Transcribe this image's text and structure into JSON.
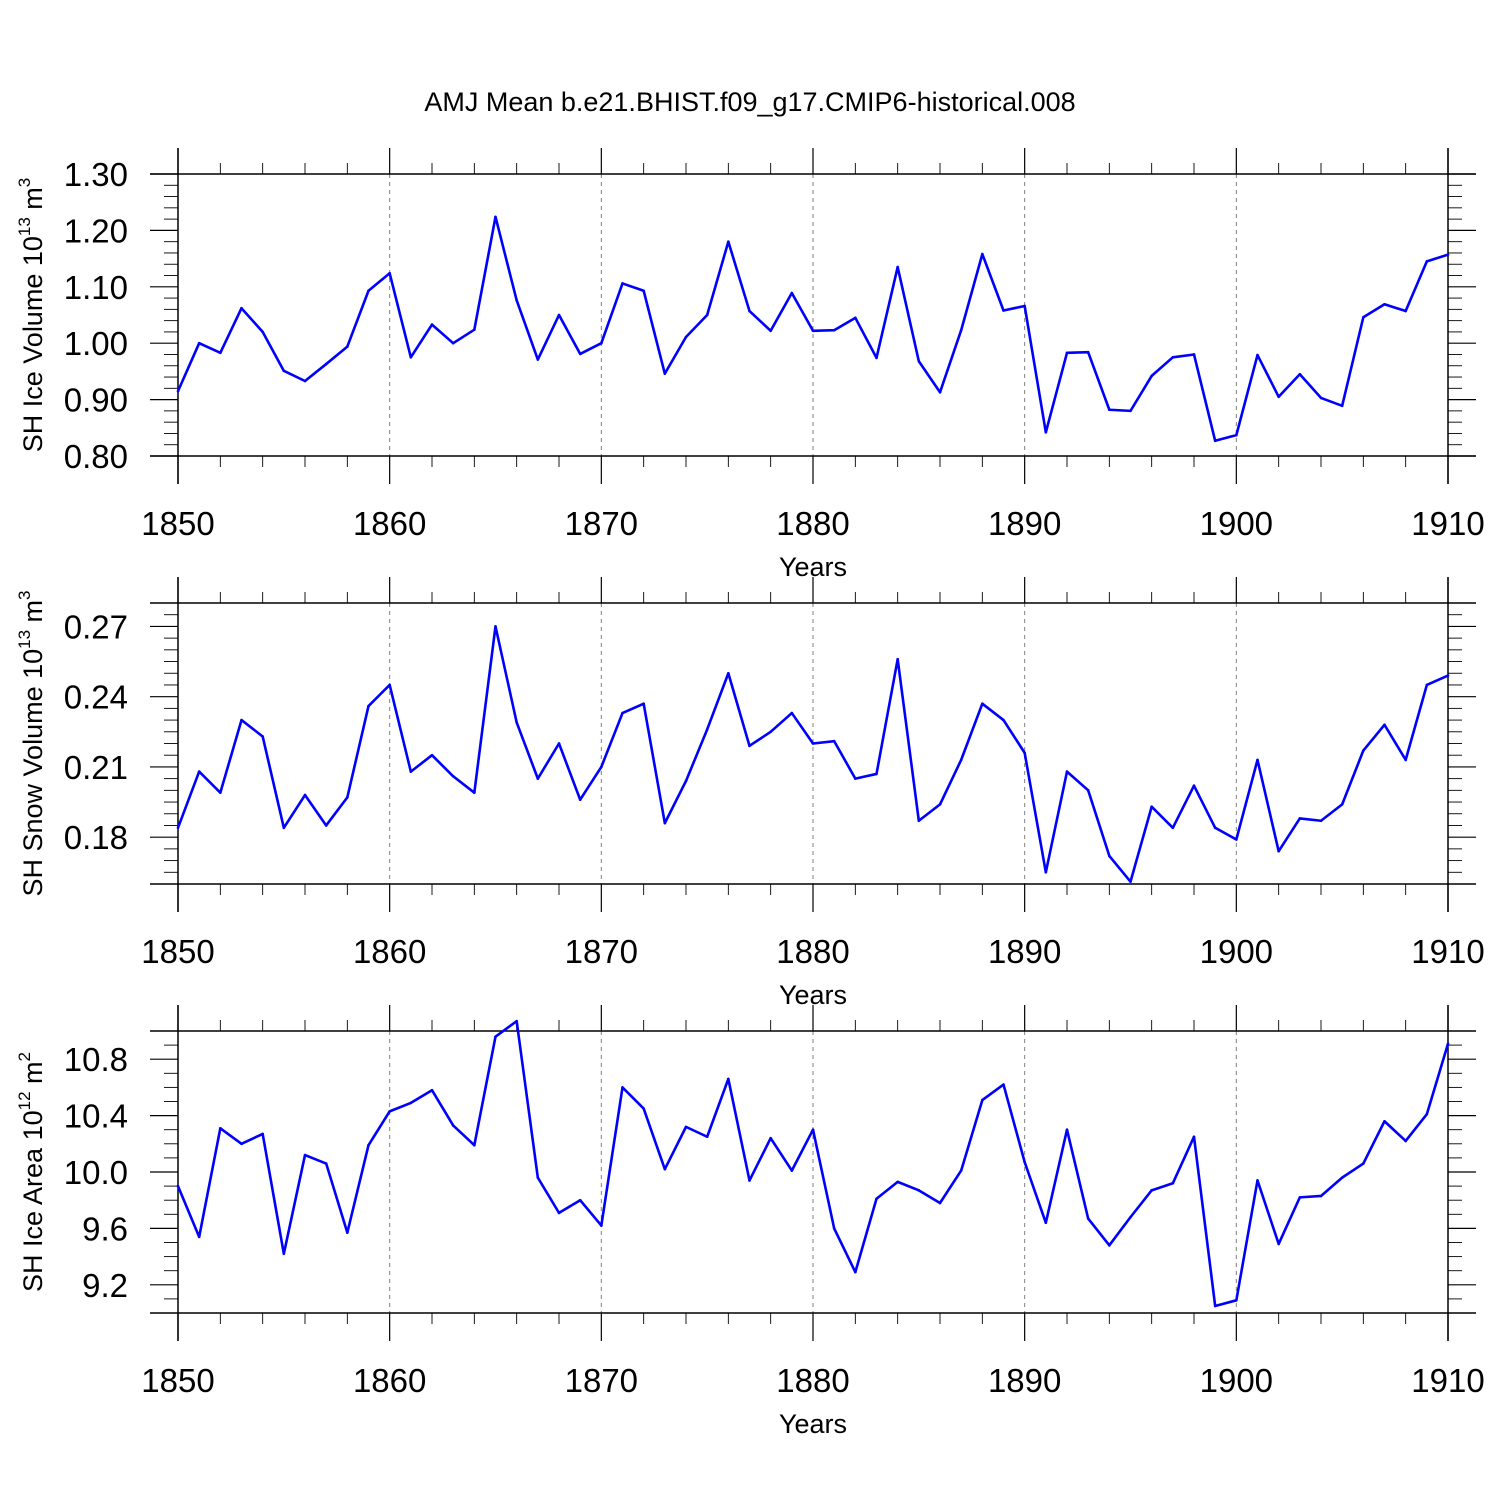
{
  "title": "AMJ Mean b.e21.BHIST.f09_g17.CMIP6-historical.008",
  "colors": {
    "series": "#0000ff",
    "axis": "#000000",
    "grid": "#808080"
  },
  "chart_data": [
    {
      "type": "line",
      "xlabel": "Years",
      "ylabel_main": "SH Ice Volume 10",
      "ylabel_exponent": "13",
      "ylabel_unit": " m",
      "ylabel_unit_exponent": "3",
      "xlim": [
        1850,
        1910
      ],
      "ylim": [
        0.8,
        1.3
      ],
      "xticks": [
        1850,
        1860,
        1870,
        1880,
        1890,
        1900,
        1910
      ],
      "xtick_labels": [
        "1850",
        "1860",
        "1870",
        "1880",
        "1890",
        "1900",
        "1910"
      ],
      "yticks": [
        0.8,
        0.9,
        1.0,
        1.1,
        1.2,
        1.3
      ],
      "ytick_labels": [
        "0.80",
        "0.90",
        "1.00",
        "1.10",
        "1.20",
        "1.30"
      ],
      "grid": "vertical dashed at major x ticks",
      "x": [
        1850,
        1851,
        1852,
        1853,
        1854,
        1855,
        1856,
        1857,
        1858,
        1859,
        1860,
        1861,
        1862,
        1863,
        1864,
        1865,
        1866,
        1867,
        1868,
        1869,
        1870,
        1871,
        1872,
        1873,
        1874,
        1875,
        1876,
        1877,
        1878,
        1879,
        1880,
        1881,
        1882,
        1883,
        1884,
        1885,
        1886,
        1887,
        1888,
        1889,
        1890,
        1891,
        1892,
        1893,
        1894,
        1895,
        1896,
        1897,
        1898,
        1899,
        1900,
        1901,
        1902,
        1903,
        1904,
        1905,
        1906,
        1907,
        1908,
        1909,
        1910
      ],
      "series": [
        {
          "values": [
            0.915,
            1.0,
            0.983,
            1.062,
            1.02,
            0.951,
            0.933,
            0.963,
            0.994,
            1.093,
            1.124,
            0.975,
            1.033,
            1.0,
            1.024,
            1.224,
            1.076,
            0.971,
            1.05,
            0.981,
            1.0,
            1.106,
            1.093,
            0.946,
            1.011,
            1.05,
            1.18,
            1.057,
            1.022,
            1.089,
            1.022,
            1.023,
            1.045,
            0.974,
            1.135,
            0.968,
            0.913,
            1.023,
            1.158,
            1.058,
            1.066,
            0.842,
            0.983,
            0.984,
            0.882,
            0.88,
            0.942,
            0.975,
            0.98,
            0.827,
            0.837,
            0.979,
            0.905,
            0.945,
            0.903,
            0.889,
            1.046,
            1.069,
            1.057,
            1.145,
            1.157
          ]
        }
      ]
    },
    {
      "type": "line",
      "xlabel": "Years",
      "ylabel_main": "SH Snow Volume 10",
      "ylabel_exponent": "13",
      "ylabel_unit": " m",
      "ylabel_unit_exponent": "3",
      "xlim": [
        1850,
        1910
      ],
      "ylim": [
        0.16,
        0.28
      ],
      "xticks": [
        1850,
        1860,
        1870,
        1880,
        1890,
        1900,
        1910
      ],
      "xtick_labels": [
        "1850",
        "1860",
        "1870",
        "1880",
        "1890",
        "1900",
        "1910"
      ],
      "yticks": [
        0.18,
        0.21,
        0.24,
        0.27
      ],
      "ytick_labels": [
        "0.18",
        "0.21",
        "0.24",
        "0.27"
      ],
      "grid": "vertical dashed at major x ticks",
      "x": [
        1850,
        1851,
        1852,
        1853,
        1854,
        1855,
        1856,
        1857,
        1858,
        1859,
        1860,
        1861,
        1862,
        1863,
        1864,
        1865,
        1866,
        1867,
        1868,
        1869,
        1870,
        1871,
        1872,
        1873,
        1874,
        1875,
        1876,
        1877,
        1878,
        1879,
        1880,
        1881,
        1882,
        1883,
        1884,
        1885,
        1886,
        1887,
        1888,
        1889,
        1890,
        1891,
        1892,
        1893,
        1894,
        1895,
        1896,
        1897,
        1898,
        1899,
        1900,
        1901,
        1902,
        1903,
        1904,
        1905,
        1906,
        1907,
        1908,
        1909,
        1910
      ],
      "series": [
        {
          "values": [
            0.184,
            0.208,
            0.199,
            0.23,
            0.223,
            0.184,
            0.198,
            0.185,
            0.197,
            0.236,
            0.245,
            0.208,
            0.215,
            0.206,
            0.199,
            0.27,
            0.229,
            0.205,
            0.22,
            0.196,
            0.21,
            0.233,
            0.237,
            0.186,
            0.204,
            0.226,
            0.25,
            0.219,
            0.225,
            0.233,
            0.22,
            0.221,
            0.205,
            0.207,
            0.256,
            0.187,
            0.194,
            0.213,
            0.237,
            0.23,
            0.216,
            0.165,
            0.208,
            0.2,
            0.172,
            0.161,
            0.193,
            0.184,
            0.202,
            0.184,
            0.179,
            0.213,
            0.174,
            0.188,
            0.187,
            0.194,
            0.217,
            0.228,
            0.213,
            0.245,
            0.249
          ]
        }
      ]
    },
    {
      "type": "line",
      "xlabel": "Years",
      "ylabel_main": "SH Ice Area 10",
      "ylabel_exponent": "12",
      "ylabel_unit": " m",
      "ylabel_unit_exponent": "2",
      "xlim": [
        1850,
        1910
      ],
      "ylim": [
        9.0,
        11.0
      ],
      "xticks": [
        1850,
        1860,
        1870,
        1880,
        1890,
        1900,
        1910
      ],
      "xtick_labels": [
        "1850",
        "1860",
        "1870",
        "1880",
        "1890",
        "1900",
        "1910"
      ],
      "yticks": [
        9.2,
        9.6,
        10.0,
        10.4,
        10.8
      ],
      "ytick_labels": [
        "9.2",
        "9.6",
        "10.0",
        "10.4",
        "10.8"
      ],
      "grid": "vertical dashed at major x ticks",
      "x": [
        1850,
        1851,
        1852,
        1853,
        1854,
        1855,
        1856,
        1857,
        1858,
        1859,
        1860,
        1861,
        1862,
        1863,
        1864,
        1865,
        1866,
        1867,
        1868,
        1869,
        1870,
        1871,
        1872,
        1873,
        1874,
        1875,
        1876,
        1877,
        1878,
        1879,
        1880,
        1881,
        1882,
        1883,
        1884,
        1885,
        1886,
        1887,
        1888,
        1889,
        1890,
        1891,
        1892,
        1893,
        1894,
        1895,
        1896,
        1897,
        1898,
        1899,
        1900,
        1901,
        1902,
        1903,
        1904,
        1905,
        1906,
        1907,
        1908,
        1909,
        1910
      ],
      "series": [
        {
          "values": [
            9.9,
            9.54,
            10.31,
            10.2,
            10.27,
            9.42,
            10.12,
            10.06,
            9.57,
            10.19,
            10.43,
            10.49,
            10.58,
            10.33,
            10.19,
            10.96,
            11.07,
            9.96,
            9.71,
            9.8,
            9.62,
            10.6,
            10.45,
            10.02,
            10.32,
            10.25,
            10.66,
            9.94,
            10.24,
            10.01,
            10.3,
            9.6,
            9.29,
            9.81,
            9.93,
            9.87,
            9.78,
            10.01,
            10.51,
            10.62,
            10.07,
            9.64,
            10.3,
            9.67,
            9.48,
            9.68,
            9.87,
            9.92,
            10.25,
            9.05,
            9.09,
            9.94,
            9.49,
            9.82,
            9.83,
            9.96,
            10.06,
            10.36,
            10.22,
            10.41,
            10.91
          ]
        }
      ]
    }
  ]
}
